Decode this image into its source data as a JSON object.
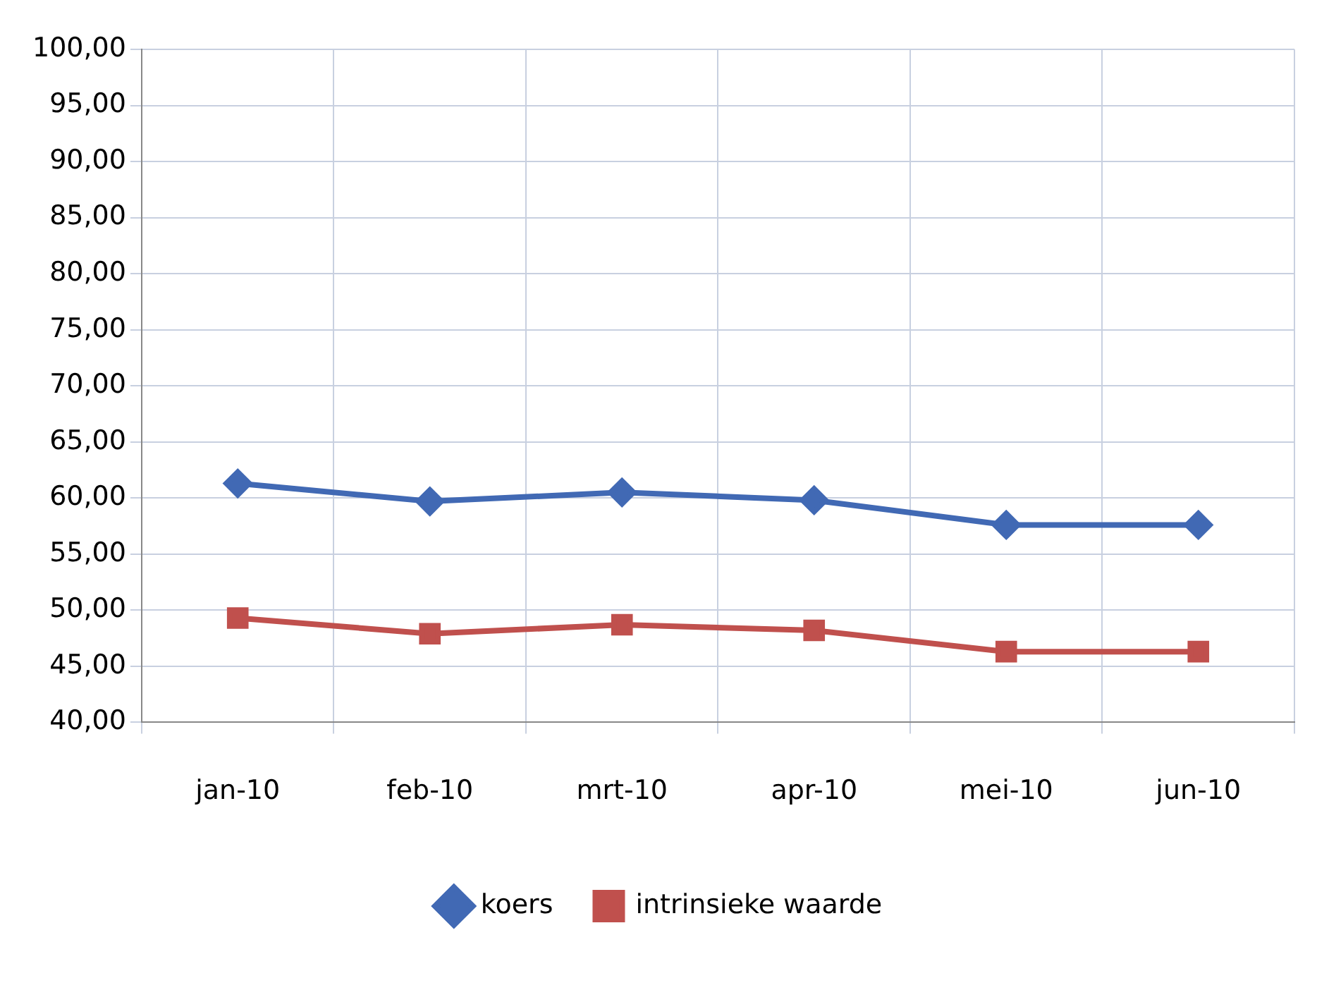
{
  "chart_data": {
    "type": "line",
    "categories": [
      "jan-10",
      "feb-10",
      "mrt-10",
      "apr-10",
      "mei-10",
      "jun-10"
    ],
    "series": [
      {
        "name": "koers",
        "color": "#4169b4",
        "values": [
          61.3,
          59.7,
          60.5,
          59.8,
          57.6,
          57.6
        ]
      },
      {
        "name": "intrinsieke waarde",
        "color": "#c0504d",
        "values": [
          49.3,
          47.9,
          48.7,
          48.2,
          46.3,
          46.3
        ]
      }
    ],
    "marker": [
      "diamond",
      "square"
    ],
    "ylim": [
      40,
      100
    ],
    "yticks": [
      {
        "value": 40,
        "label": "40,00"
      },
      {
        "value": 45,
        "label": "45,00"
      },
      {
        "value": 50,
        "label": "50,00"
      },
      {
        "value": 55,
        "label": "55,00"
      },
      {
        "value": 60,
        "label": "60,00"
      },
      {
        "value": 65,
        "label": "65,00"
      },
      {
        "value": 70,
        "label": "70,00"
      },
      {
        "value": 75,
        "label": "75,00"
      },
      {
        "value": 80,
        "label": "80,00"
      },
      {
        "value": 85,
        "label": "85,00"
      },
      {
        "value": 90,
        "label": "90,00"
      },
      {
        "value": 95,
        "label": "95,00"
      },
      {
        "value": 100,
        "label": "100,00"
      }
    ],
    "grid": true,
    "legend": "bottom"
  }
}
